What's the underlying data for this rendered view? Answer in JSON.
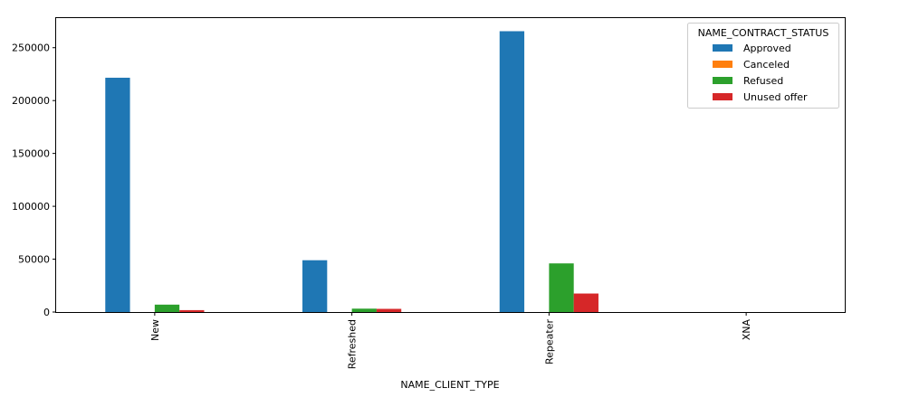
{
  "chart_data": {
    "type": "bar",
    "xlabel": "NAME_CLIENT_TYPE",
    "ylabel": "",
    "categories": [
      "New",
      "Refreshed",
      "Repeater",
      "XNA"
    ],
    "ylim": [
      0,
      278000
    ],
    "yticks": [
      0,
      50000,
      100000,
      150000,
      200000,
      250000
    ],
    "grid": false,
    "legend": {
      "title": "NAME_CONTRACT_STATUS",
      "placement": "top-right"
    },
    "series": [
      {
        "name": "Approved",
        "color": "#1f77b4",
        "values": [
          221600,
          49000,
          265600,
          0
        ]
      },
      {
        "name": "Canceled",
        "color": "#ff7f0e",
        "values": [
          0,
          0,
          0,
          0
        ]
      },
      {
        "name": "Refused",
        "color": "#2ca02c",
        "values": [
          7000,
          3200,
          46000,
          0
        ]
      },
      {
        "name": "Unused offer",
        "color": "#d62728",
        "values": [
          1800,
          3000,
          17500,
          0
        ]
      }
    ]
  }
}
